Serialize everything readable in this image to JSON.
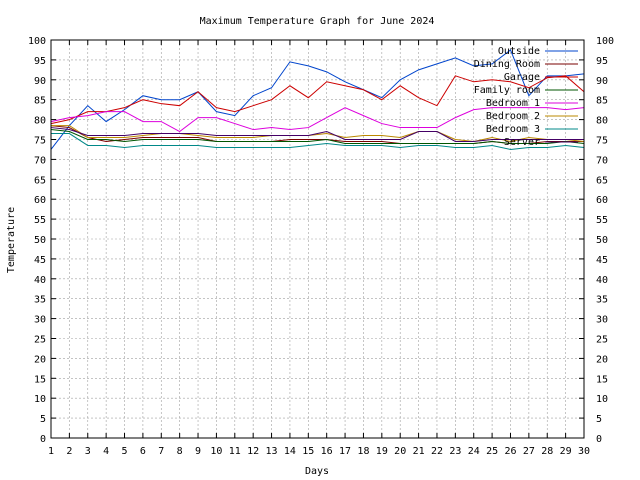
{
  "chart_data": {
    "type": "line",
    "title": "Maximum Temperature Graph for June 2024",
    "xlabel": "Days",
    "ylabel": "Temperature",
    "xlim": [
      1,
      30
    ],
    "ylim": [
      0,
      100
    ],
    "x_ticks": [
      1,
      2,
      3,
      4,
      5,
      6,
      7,
      8,
      9,
      10,
      11,
      12,
      13,
      14,
      15,
      16,
      17,
      18,
      19,
      20,
      21,
      22,
      23,
      24,
      25,
      26,
      27,
      28,
      29,
      30
    ],
    "y_ticks": [
      0,
      5,
      10,
      15,
      20,
      25,
      30,
      35,
      40,
      45,
      50,
      55,
      60,
      65,
      70,
      75,
      80,
      85,
      90,
      95,
      100
    ],
    "y_ticks_right": true,
    "grid": true,
    "legend_position": "top-right",
    "x": [
      1,
      2,
      3,
      4,
      5,
      6,
      7,
      8,
      9,
      10,
      11,
      12,
      13,
      14,
      15,
      16,
      17,
      18,
      19,
      20,
      21,
      22,
      23,
      24,
      25,
      26,
      27,
      28,
      29,
      30
    ],
    "series": [
      {
        "name": "Outside",
        "color": "#0044cc",
        "values": [
          72.5,
          78.5,
          83.5,
          79.5,
          82.5,
          86,
          85,
          85,
          87,
          82,
          81,
          86,
          88,
          94.5,
          93.5,
          92,
          89.5,
          87.5,
          85.5,
          90,
          92.5,
          94,
          95.5,
          93.5,
          94,
          97.5,
          86,
          91,
          91,
          91.5
        ]
      },
      {
        "name": "Dining Room",
        "color": "#7a0000",
        "values": [
          78.5,
          78,
          75.5,
          74.5,
          75,
          75.5,
          75.5,
          75.5,
          75.5,
          74.5,
          74.5,
          74.5,
          74.5,
          75,
          75,
          75,
          74.5,
          74.5,
          74.5,
          74,
          74,
          74,
          74,
          74,
          74.5,
          74,
          74,
          74.5,
          74.5,
          74.5
        ]
      },
      {
        "name": "Garage",
        "color": "#cc0000",
        "values": [
          79,
          80,
          82,
          82,
          83,
          85,
          84,
          83.5,
          87,
          83,
          82,
          83.5,
          85,
          88.5,
          85.5,
          89.5,
          88.5,
          87.5,
          85,
          88.5,
          85.5,
          83.5,
          91,
          89.5,
          90,
          89.5,
          88,
          90.5,
          91,
          87
        ]
      },
      {
        "name": "Family room",
        "color": "#005500",
        "values": [
          77.5,
          77,
          75,
          75,
          74.5,
          75,
          75,
          75,
          75,
          74.5,
          74.5,
          74.5,
          74.5,
          74.5,
          74.5,
          75,
          74,
          74,
          74,
          74,
          74,
          74,
          74,
          74,
          74.5,
          74,
          74,
          74,
          74.5,
          74
        ]
      },
      {
        "name": "Bedroom 1",
        "color": "#dd00dd",
        "values": [
          79.5,
          80.5,
          81,
          82,
          82,
          79.5,
          79.5,
          77,
          80.5,
          80.5,
          79,
          77.5,
          78,
          77.5,
          78,
          80.5,
          83,
          81,
          79,
          78,
          78,
          78,
          80.5,
          82.5,
          83,
          83,
          83,
          83,
          82.5,
          83
        ]
      },
      {
        "name": "Bedroom 2",
        "color": "#bb8800",
        "values": [
          78.5,
          78.5,
          75.5,
          75.5,
          75.5,
          76,
          76.5,
          76.5,
          76,
          75.5,
          75.5,
          75.5,
          76,
          76,
          76,
          76.5,
          75.5,
          76,
          76,
          75.5,
          77,
          77,
          75,
          74.5,
          75.5,
          74.5,
          75.5,
          75,
          75,
          74.5
        ]
      },
      {
        "name": "Bedroom 3",
        "color": "#008888",
        "values": [
          76.5,
          76.5,
          73.5,
          73.5,
          73,
          73.5,
          73.5,
          73.5,
          73.5,
          73,
          73,
          73,
          73,
          73,
          73.5,
          74,
          73.5,
          73.5,
          73.5,
          73,
          73.5,
          73.5,
          73,
          73,
          73.5,
          72.5,
          73,
          73,
          73.5,
          73
        ]
      },
      {
        "name": "Server",
        "color": "#440066",
        "values": [
          78,
          77.5,
          76,
          76,
          76,
          76.5,
          76.5,
          76.5,
          76.5,
          76,
          76,
          76,
          76,
          76,
          76,
          77,
          75,
          75,
          75,
          75,
          77,
          77,
          74.5,
          74.5,
          75,
          75,
          75,
          75,
          75,
          75
        ]
      }
    ]
  }
}
